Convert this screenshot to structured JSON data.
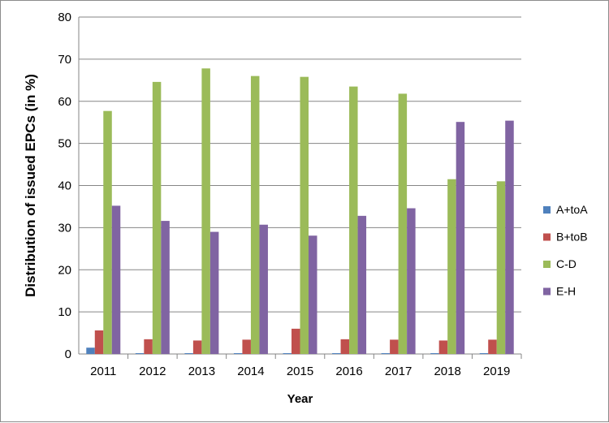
{
  "chart_data": {
    "type": "bar",
    "title": "",
    "xlabel": "Year",
    "ylabel": "Distribution of issued EPCs (in %)",
    "ylim": [
      0,
      80
    ],
    "yticks": [
      0,
      10,
      20,
      30,
      40,
      50,
      60,
      70,
      80
    ],
    "grid": true,
    "legend_position": "right",
    "categories": [
      "2011",
      "2012",
      "2013",
      "2014",
      "2015",
      "2016",
      "2017",
      "2018",
      "2019"
    ],
    "series": [
      {
        "name": "A+toA",
        "color": "#4f81bd",
        "values": [
          1.5,
          0.2,
          0.2,
          0.2,
          0.2,
          0.2,
          0.2,
          0.2,
          0.2
        ]
      },
      {
        "name": "B+toB",
        "color": "#c0504d",
        "values": [
          5.6,
          3.5,
          3.2,
          3.4,
          6.0,
          3.5,
          3.4,
          3.2,
          3.4
        ]
      },
      {
        "name": "C-D",
        "color": "#9bbb59",
        "values": [
          57.7,
          64.6,
          67.8,
          66.0,
          65.8,
          63.5,
          61.8,
          41.5,
          41.0
        ]
      },
      {
        "name": "E-H",
        "color": "#8064a2",
        "values": [
          35.2,
          31.6,
          29.0,
          30.7,
          28.1,
          32.8,
          34.6,
          55.1,
          55.4
        ]
      }
    ]
  }
}
